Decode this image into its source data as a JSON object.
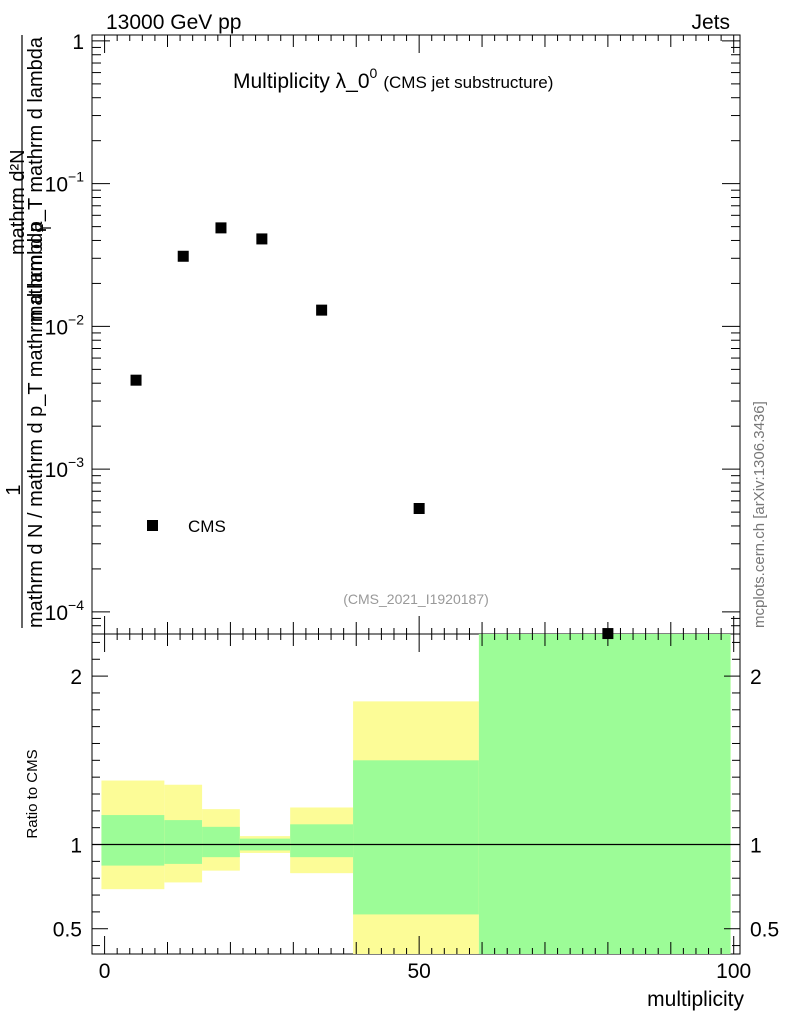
{
  "header": {
    "left": "13000 GeV pp",
    "right": "Jets"
  },
  "watermark": "mcplots.cern.ch [arXiv:1306.3436]",
  "chart_data": [
    {
      "type": "scatter",
      "title_main": "Multiplicity λ_0",
      "title_sup": "0",
      "title_sub": "(CMS jet substructure)",
      "analysis_id": "(CMS_2021_I1920187)",
      "ylabel_numerator": "mathrm d²N",
      "ylabel_numerator_mid": "mathrm d p_T mathrm d lambda",
      "ylabel_numerator_sub": "T",
      "ylabel_denominator": "mathrm d N / mathrm d p_T mathrm d lambda",
      "ylabel_one": "1",
      "yscale": "log",
      "ylim": [
        7e-05,
        1.1
      ],
      "xlim": [
        -2,
        101
      ],
      "ytick_labels": [
        {
          "v": 1,
          "base": "1",
          "exp": ""
        },
        {
          "v": 0.1,
          "base": "10",
          "exp": "−1"
        },
        {
          "v": 0.01,
          "base": "10",
          "exp": "−2"
        },
        {
          "v": 0.001,
          "base": "10",
          "exp": "−3"
        },
        {
          "v": 0.0001,
          "base": "10",
          "exp": "−4"
        }
      ],
      "series": [
        {
          "name": "CMS",
          "color": "#000000",
          "points": [
            {
              "x": 5,
              "y": 0.0042
            },
            {
              "x": 12.5,
              "y": 0.031
            },
            {
              "x": 18.5,
              "y": 0.049
            },
            {
              "x": 25,
              "y": 0.041
            },
            {
              "x": 34.5,
              "y": 0.013
            },
            {
              "x": 50,
              "y": 0.00053
            },
            {
              "x": 80,
              "y": 7.05e-05
            }
          ]
        }
      ],
      "legend": {
        "label": "CMS",
        "position": "bottom-left"
      }
    },
    {
      "type": "area",
      "ylabel": "Ratio to CMS",
      "xlabel": "multiplicity",
      "ylim": [
        0.35,
        2.25
      ],
      "xlim": [
        -2,
        101
      ],
      "xtick_labels": [
        "0",
        "50",
        "100"
      ],
      "xticks": [
        0,
        50,
        100
      ],
      "ytick_labels": [
        "0.5",
        "1",
        "2"
      ],
      "yticks": [
        0.5,
        1,
        2
      ],
      "reference_line": 1,
      "band_colors": {
        "inner": "#9cfc97",
        "outer": "#fcfc97"
      },
      "bins": [
        {
          "x0": -0.5,
          "x1": 9.5,
          "inner": [
            0.875,
            1.175
          ],
          "outer": [
            0.735,
            1.38
          ]
        },
        {
          "x0": 9.5,
          "x1": 15.5,
          "inner": [
            0.885,
            1.145
          ],
          "outer": [
            0.775,
            1.355
          ]
        },
        {
          "x0": 15.5,
          "x1": 21.5,
          "inner": [
            0.925,
            1.105
          ],
          "outer": [
            0.845,
            1.21
          ]
        },
        {
          "x0": 21.5,
          "x1": 29.5,
          "inner": [
            0.965,
            1.035
          ],
          "outer": [
            0.95,
            1.05
          ]
        },
        {
          "x0": 29.5,
          "x1": 39.5,
          "inner": [
            0.925,
            1.12
          ],
          "outer": [
            0.83,
            1.22
          ]
        },
        {
          "x0": 39.5,
          "x1": 59.5,
          "inner": [
            0.585,
            1.5
          ],
          "outer": [
            0.35,
            1.85
          ]
        },
        {
          "x0": 59.5,
          "x1": 99.5,
          "inner": [
            0.35,
            2.25
          ],
          "outer": [
            0.35,
            2.25
          ]
        }
      ]
    }
  ]
}
